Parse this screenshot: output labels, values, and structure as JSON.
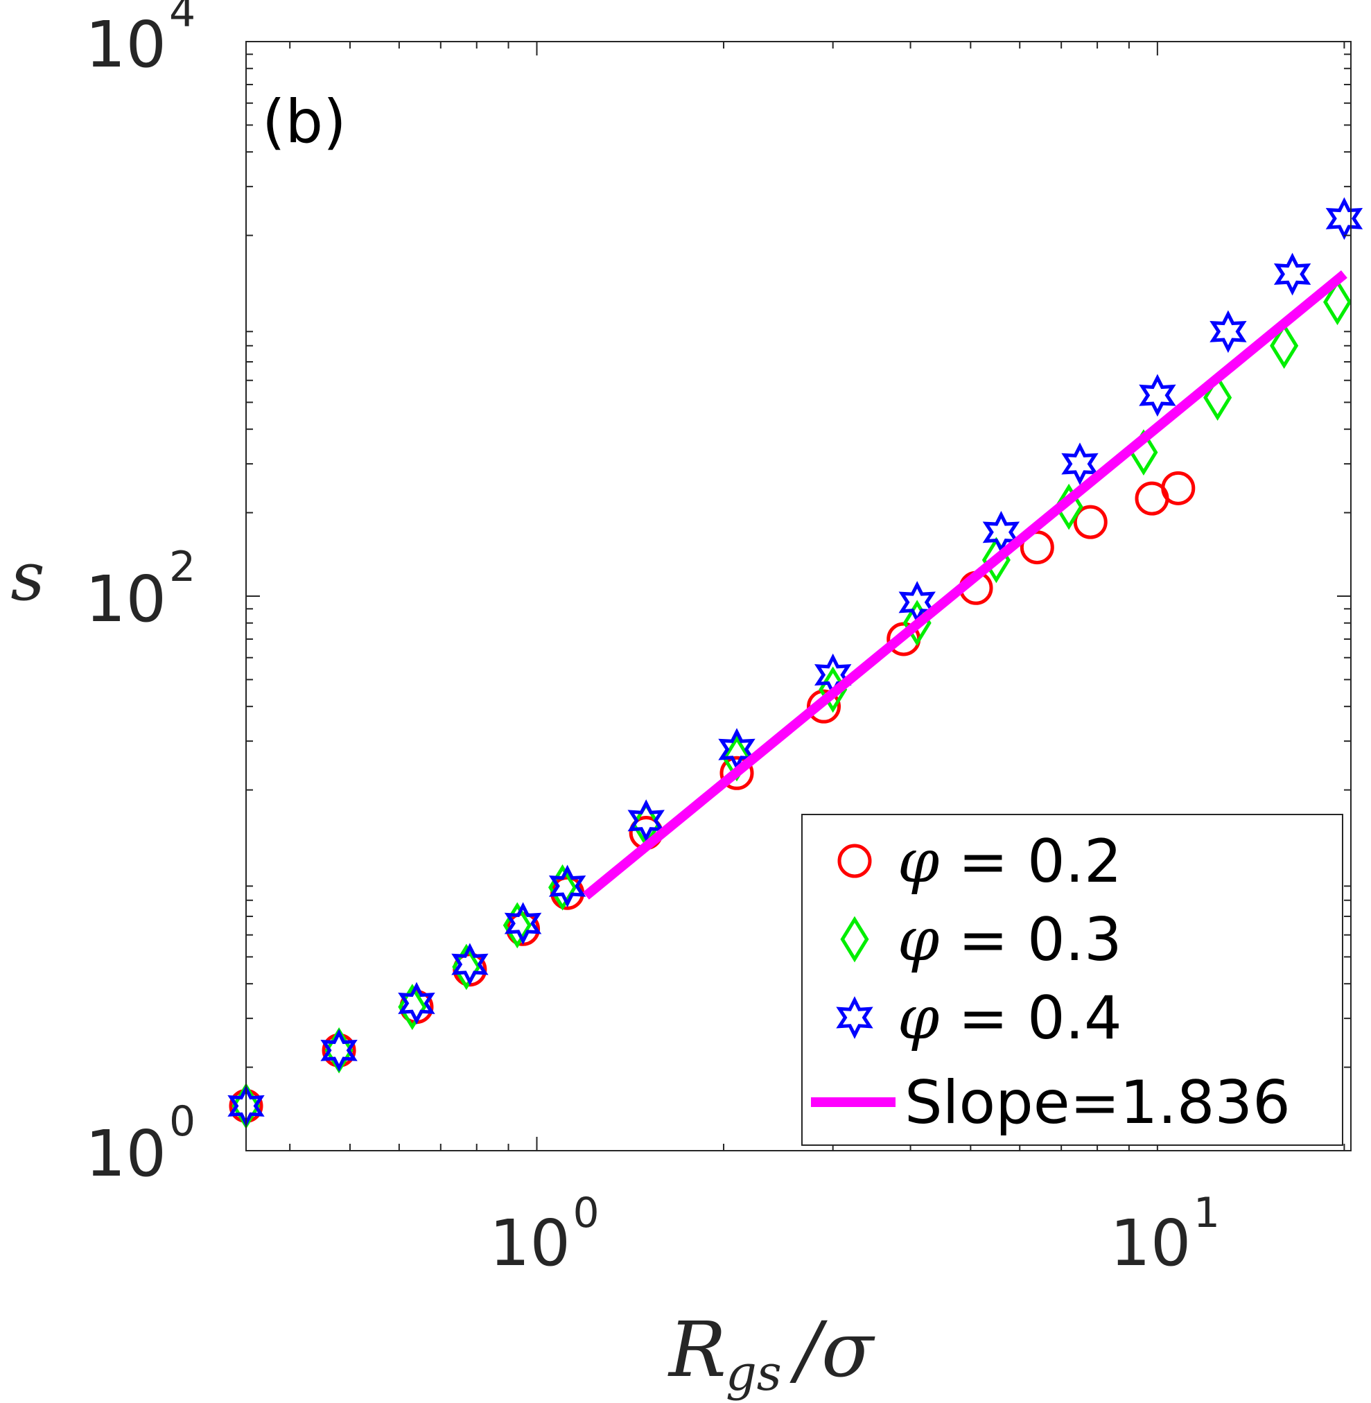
{
  "chart_data": {
    "type": "scatter",
    "panel_label": "(b)",
    "xlabel": {
      "main": "R",
      "sub": "gs",
      "tail": "/σ"
    },
    "ylabel": "s",
    "xscale": "log",
    "yscale": "log",
    "xlim": [
      0.34,
      20.5
    ],
    "ylim": [
      1,
      10000
    ],
    "xticks": [
      {
        "value": 1,
        "base": "10",
        "exp": "0"
      },
      {
        "value": 10,
        "base": "10",
        "exp": "1"
      }
    ],
    "yticks": [
      {
        "value": 1,
        "base": "10",
        "exp": "0"
      },
      {
        "value": 100,
        "base": "10",
        "exp": "2"
      },
      {
        "value": 10000,
        "base": "10",
        "exp": "4"
      }
    ],
    "legend_position": "bottom-right",
    "series": [
      {
        "name": "φ = 0.2",
        "symbol": "φ",
        "label_rest": " = 0.2",
        "marker": "circle",
        "color": "#ff0000",
        "x": [
          0.34,
          0.48,
          0.64,
          0.78,
          0.95,
          1.12,
          1.5,
          2.1,
          2.9,
          3.9,
          5.1,
          6.4,
          7.8,
          9.8,
          10.8
        ],
        "y": [
          1.45,
          2.3,
          3.3,
          4.5,
          6.3,
          8.5,
          14,
          23,
          40,
          70,
          107,
          150,
          185,
          225,
          245
        ]
      },
      {
        "name": "φ = 0.3",
        "symbol": "φ",
        "label_rest": " = 0.3",
        "marker": "diamond",
        "color": "#00ee00",
        "x": [
          0.34,
          0.48,
          0.63,
          0.77,
          0.93,
          1.1,
          1.5,
          2.1,
          3.0,
          4.1,
          5.5,
          7.2,
          9.5,
          12.5,
          16,
          19.5
        ],
        "y": [
          1.45,
          2.3,
          3.3,
          4.6,
          6.5,
          8.9,
          15,
          26,
          46,
          80,
          135,
          210,
          330,
          520,
          800,
          1150
        ]
      },
      {
        "name": "φ = 0.4",
        "symbol": "φ",
        "label_rest": " = 0.4",
        "marker": "hexagram",
        "color": "#0000ff",
        "x": [
          0.34,
          0.48,
          0.64,
          0.78,
          0.95,
          1.12,
          1.5,
          2.1,
          3.0,
          4.1,
          5.6,
          7.5,
          10,
          13,
          16.5,
          20
        ],
        "y": [
          1.45,
          2.3,
          3.4,
          4.7,
          6.6,
          9.0,
          15.5,
          28,
          52,
          95,
          170,
          300,
          530,
          900,
          1450,
          2300
        ]
      }
    ],
    "fit": {
      "label": "Slope=1.836",
      "slope": 1.836,
      "color": "#ff00ff",
      "x": [
        1.2,
        20
      ],
      "y": [
        8.3,
        1450
      ]
    }
  }
}
